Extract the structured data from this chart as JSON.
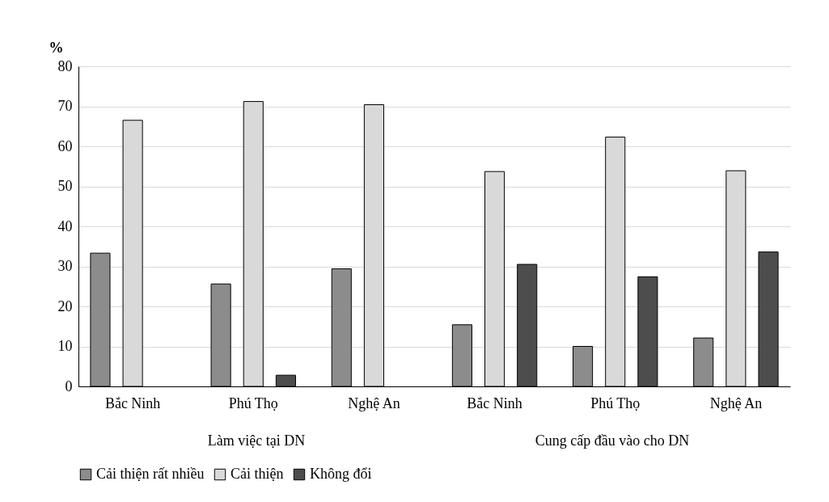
{
  "chart_data": {
    "type": "bar",
    "ylabel": "%",
    "categories": [
      "Bắc Ninh",
      "Phú Thọ",
      "Nghệ An",
      "Bắc Ninh",
      "Phú Thọ",
      "Nghệ An"
    ],
    "series": [
      {
        "name": "Cải thiện rất nhiều",
        "color": "#8c8c8c",
        "values": [
          33.3,
          25.6,
          29.4,
          15.4,
          10,
          12.1
        ]
      },
      {
        "name": "Cải thiện",
        "color": "#d9d9d9",
        "values": [
          66.5,
          71.2,
          70.4,
          53.7,
          62.3,
          53.9
        ]
      },
      {
        "name": "Không đổi",
        "color": "#4d4d4d",
        "values": [
          null,
          2.8,
          null,
          30.5,
          27.4,
          33.6
        ]
      }
    ],
    "ylim": [
      0,
      80
    ],
    "yticks": [
      0,
      10,
      20,
      30,
      40,
      50,
      60,
      70,
      80
    ],
    "grid": "y",
    "legend": "bottom",
    "annotations": [
      "Làm việc tại DN",
      "Cung cấp đầu vào cho DN"
    ]
  }
}
